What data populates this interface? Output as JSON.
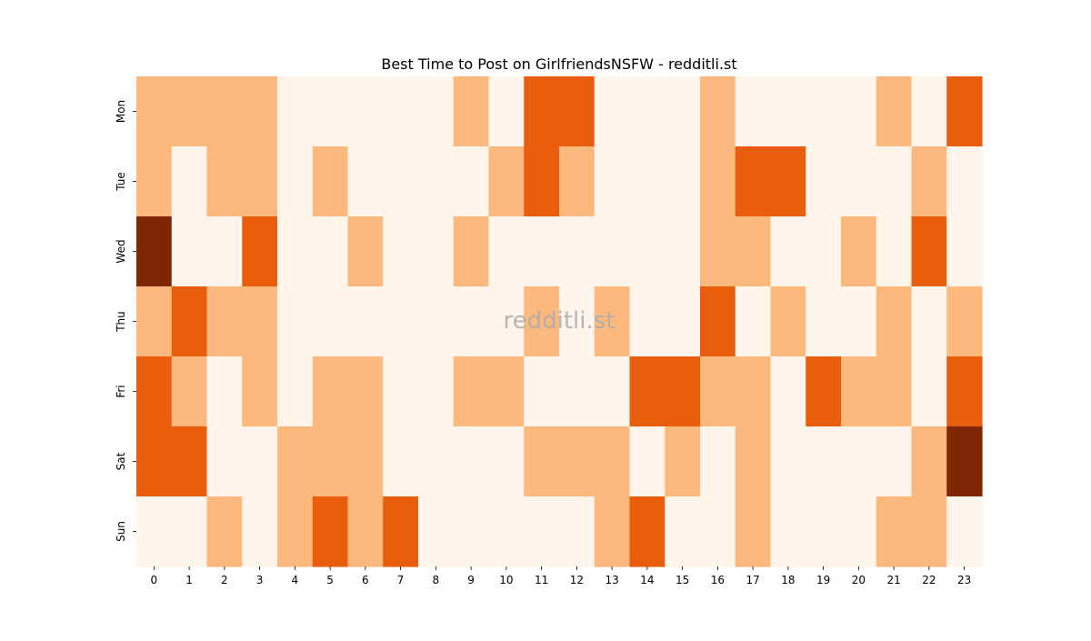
{
  "chart_data": {
    "type": "heatmap",
    "title": "Best Time to Post on GirlfriendsNSFW - redditli.st",
    "watermark": "redditli.st",
    "xlabel": "",
    "ylabel": "",
    "x": [
      "0",
      "1",
      "2",
      "3",
      "4",
      "5",
      "6",
      "7",
      "8",
      "9",
      "10",
      "11",
      "12",
      "13",
      "14",
      "15",
      "16",
      "17",
      "18",
      "19",
      "20",
      "21",
      "22",
      "23"
    ],
    "y": [
      "Mon",
      "Tue",
      "Wed",
      "Thu",
      "Fri",
      "Sat",
      "Sun"
    ],
    "values": [
      [
        1,
        1,
        1,
        1,
        0,
        0,
        0,
        0,
        0,
        1,
        0,
        2,
        2,
        0,
        0,
        0,
        1,
        0,
        0,
        0,
        0,
        1,
        0,
        2
      ],
      [
        1,
        0,
        1,
        1,
        0,
        1,
        0,
        0,
        0,
        0,
        1,
        2,
        1,
        0,
        0,
        0,
        1,
        2,
        2,
        0,
        0,
        0,
        1,
        0
      ],
      [
        3,
        0,
        0,
        2,
        0,
        0,
        1,
        0,
        0,
        1,
        0,
        0,
        0,
        0,
        0,
        0,
        1,
        1,
        0,
        0,
        1,
        0,
        2,
        0
      ],
      [
        1,
        2,
        1,
        1,
        0,
        0,
        0,
        0,
        0,
        0,
        0,
        1,
        0,
        1,
        0,
        0,
        2,
        0,
        1,
        0,
        0,
        1,
        0,
        1
      ],
      [
        2,
        1,
        0,
        1,
        0,
        1,
        1,
        0,
        0,
        1,
        1,
        0,
        0,
        0,
        2,
        2,
        1,
        1,
        0,
        2,
        1,
        1,
        0,
        2
      ],
      [
        2,
        2,
        0,
        0,
        1,
        1,
        1,
        0,
        0,
        0,
        0,
        1,
        1,
        1,
        0,
        1,
        0,
        1,
        0,
        0,
        0,
        0,
        1,
        3
      ],
      [
        0,
        0,
        1,
        0,
        1,
        2,
        1,
        2,
        0,
        0,
        0,
        0,
        0,
        1,
        2,
        0,
        0,
        1,
        0,
        0,
        0,
        1,
        1,
        0
      ]
    ],
    "colormap": "Oranges",
    "level_colors": [
      "#fff5eb",
      "#fdb87d",
      "#e95e0d",
      "#7f2704"
    ],
    "grid": false,
    "colorbar": false
  }
}
